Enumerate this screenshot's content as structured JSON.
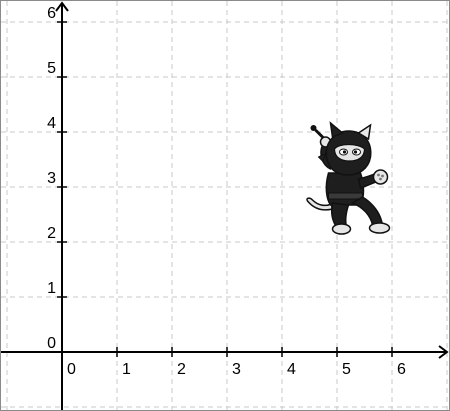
{
  "coordinate_plane": {
    "x_ticks": [
      "0",
      "1",
      "2",
      "3",
      "4",
      "5",
      "6"
    ],
    "y_ticks": [
      "0",
      "1",
      "2",
      "3",
      "4",
      "5",
      "6"
    ],
    "x_range": [
      -1,
      7
    ],
    "y_range": [
      -1,
      6.3
    ],
    "grid": true
  },
  "sprite": {
    "icon": "ninja-cat-icon",
    "center": {
      "x": 5.1,
      "y": 3.0
    }
  },
  "colors": {
    "grid": "#c8c8c8",
    "axis": "#000000",
    "sprite_dark": "#1e1e1e",
    "sprite_light": "#e6e6e6"
  }
}
